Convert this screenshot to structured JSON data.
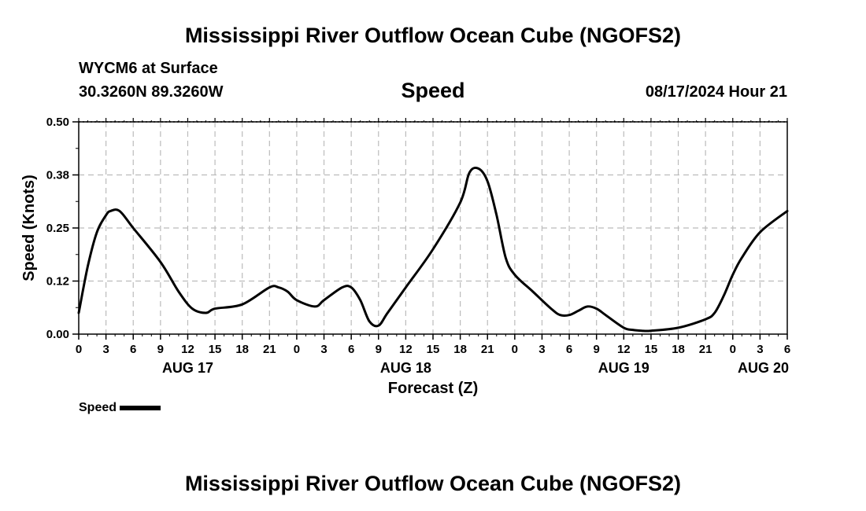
{
  "page": {
    "title_top": "Mississippi River Outflow Ocean Cube (NGOFS2)",
    "title_bottom": "Mississippi River Outflow Ocean Cube (NGOFS2)",
    "station": "WYCM6 at Surface",
    "coords": "30.3260N  89.3260W",
    "chart_title": "Speed",
    "issued": "08/17/2024 Hour 21"
  },
  "legend": {
    "label": "Speed"
  },
  "chart_data": {
    "type": "line",
    "title": "Speed",
    "xlabel": "Forecast (Z)",
    "ylabel": "Speed (Knots)",
    "ylim": [
      0,
      0.5
    ],
    "xlim": [
      0,
      78
    ],
    "y_ticks": [
      "0.00",
      "0.12",
      "0.25",
      "0.38",
      "0.50"
    ],
    "y_tick_values": [
      0,
      0.125,
      0.25,
      0.375,
      0.5
    ],
    "x_tick_labels": [
      "0",
      "3",
      "6",
      "9",
      "12",
      "15",
      "18",
      "21",
      "0",
      "3",
      "6",
      "9",
      "12",
      "15",
      "18",
      "21",
      "0",
      "3",
      "6",
      "9",
      "12",
      "15",
      "18",
      "21",
      "0",
      "3",
      "6"
    ],
    "date_labels": [
      {
        "text": "AUG 17",
        "x": 12
      },
      {
        "text": "AUG 18",
        "x": 36
      },
      {
        "text": "AUG 19",
        "x": 60
      },
      {
        "text": "AUG 20",
        "x": 78
      }
    ],
    "grid": true,
    "series": [
      {
        "name": "Speed",
        "color": "#000000",
        "x": [
          0,
          1,
          2,
          3,
          3.5,
          4.5,
          6,
          9,
          11,
          12.5,
          14,
          15,
          18,
          21,
          22,
          23,
          24,
          26,
          27,
          29,
          30,
          31,
          32,
          33,
          34,
          36,
          39,
          42,
          43,
          44,
          45,
          46,
          47,
          48,
          50,
          52,
          53,
          54,
          55,
          56,
          57,
          58,
          60,
          61,
          62,
          63,
          66,
          69,
          70,
          71,
          72,
          73,
          75,
          78
        ],
        "y": [
          0.05,
          0.16,
          0.24,
          0.28,
          0.29,
          0.29,
          0.25,
          0.17,
          0.1,
          0.06,
          0.05,
          0.06,
          0.07,
          0.11,
          0.11,
          0.1,
          0.08,
          0.065,
          0.08,
          0.11,
          0.11,
          0.08,
          0.03,
          0.02,
          0.05,
          0.11,
          0.2,
          0.31,
          0.38,
          0.39,
          0.36,
          0.28,
          0.18,
          0.14,
          0.1,
          0.06,
          0.045,
          0.045,
          0.055,
          0.065,
          0.06,
          0.045,
          0.015,
          0.01,
          0.008,
          0.008,
          0.015,
          0.035,
          0.05,
          0.09,
          0.14,
          0.18,
          0.24,
          0.29
        ]
      }
    ]
  }
}
